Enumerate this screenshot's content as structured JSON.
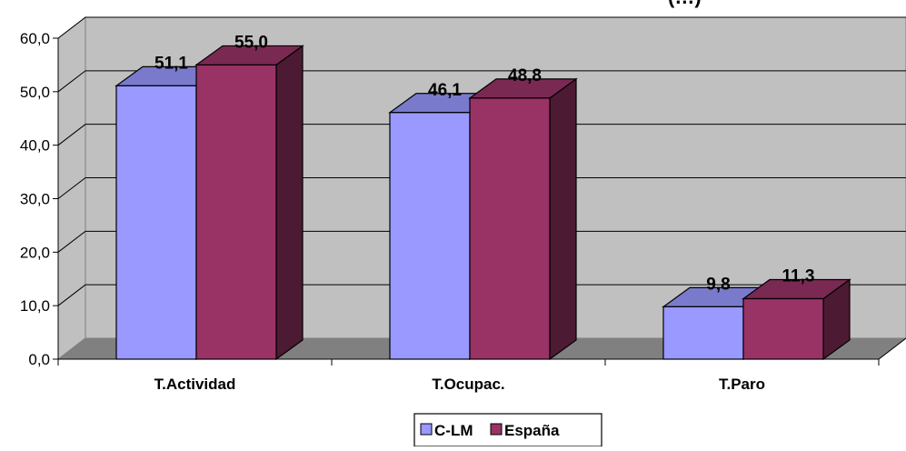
{
  "chart_data": {
    "type": "bar",
    "title": "(…)",
    "categories": [
      "T.Actividad",
      "T.Ocupac.",
      "T.Paro"
    ],
    "series": [
      {
        "name": "C-LM",
        "values": [
          51.1,
          46.1,
          9.8
        ],
        "labels": [
          "51,1",
          "46,1",
          "9,8"
        ],
        "color": "#9999FF"
      },
      {
        "name": "España",
        "values": [
          55.0,
          48.8,
          11.3
        ],
        "labels": [
          "55,0",
          "48,8",
          "11,3"
        ],
        "color": "#993366"
      }
    ],
    "yticks": [
      "0,0",
      "10,0",
      "20,0",
      "30,0",
      "40,0",
      "50,0",
      "60,0"
    ],
    "ylim": [
      0,
      60
    ],
    "grid": true,
    "legend_position": "bottom",
    "colors": {
      "wall": "#C0C0C0",
      "floor": "#808080",
      "gridline": "#000000"
    }
  }
}
